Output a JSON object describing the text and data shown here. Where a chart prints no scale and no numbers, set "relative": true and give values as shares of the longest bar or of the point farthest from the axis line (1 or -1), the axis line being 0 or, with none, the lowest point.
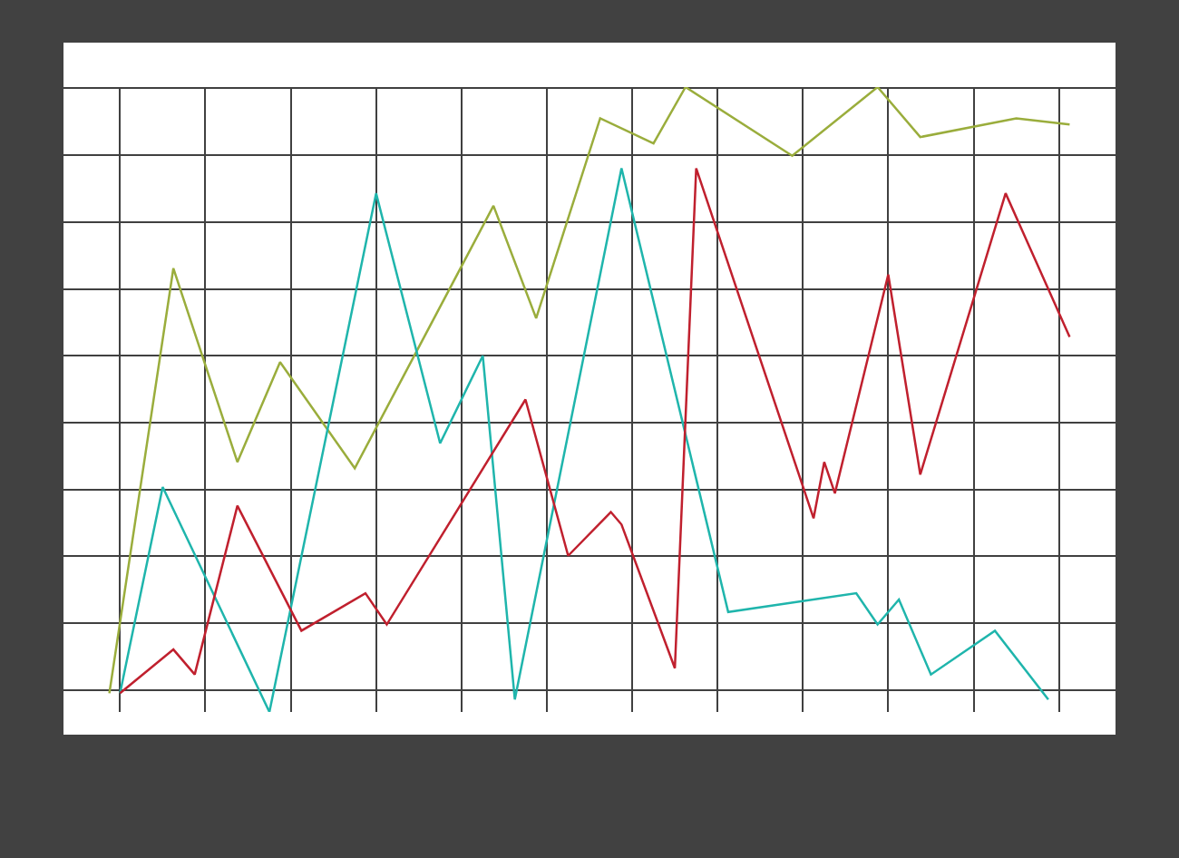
{
  "chart_data": {
    "type": "line",
    "relative": true,
    "tick_labels": false,
    "grid": true,
    "line_style": "solid",
    "categories": [
      null,
      null,
      null,
      null,
      null,
      null,
      null,
      null,
      null,
      null,
      null,
      null,
      null,
      null,
      null,
      null,
      null,
      null,
      null,
      null,
      null,
      null,
      null,
      null,
      null,
      null,
      null,
      null,
      null,
      null,
      null,
      null,
      null,
      null,
      null,
      null,
      null,
      null,
      null,
      null,
      null,
      null,
      null,
      null,
      null,
      null,
      null,
      null,
      null,
      null,
      null,
      null,
      null,
      null,
      null,
      null,
      null,
      null,
      null,
      null,
      null,
      null,
      null,
      null,
      null,
      null,
      null,
      null,
      null,
      null,
      null,
      null,
      null,
      null,
      null,
      null,
      null,
      null,
      null,
      null,
      null,
      null,
      null,
      null,
      null,
      null,
      null,
      null,
      null,
      null,
      null
    ],
    "series": [
      {
        "color": "#9aad3c",
        "values": [
          0.03,
          null,
          null,
          null,
          null,
          null,
          0.71,
          null,
          null,
          null,
          null,
          null,
          0.4,
          null,
          null,
          null,
          0.56,
          null,
          null,
          null,
          null,
          null,
          null,
          0.39,
          null,
          null,
          null,
          null,
          null,
          null,
          null,
          null,
          null,
          null,
          null,
          null,
          0.81,
          null,
          null,
          null,
          0.63,
          null,
          null,
          null,
          null,
          null,
          0.95,
          null,
          null,
          null,
          null,
          0.91,
          null,
          null,
          1.0,
          null,
          null,
          null,
          null,
          null,
          null,
          null,
          null,
          null,
          0.89,
          null,
          null,
          null,
          null,
          null,
          null,
          null,
          1.0,
          null,
          null,
          null,
          0.92,
          null,
          null,
          null,
          null,
          null,
          null,
          null,
          null,
          0.95,
          null,
          null,
          null,
          null,
          0.94
        ]
      },
      {
        "color": "#1fb5ac",
        "values": [
          null,
          0.03,
          null,
          null,
          null,
          0.36,
          null,
          null,
          null,
          null,
          null,
          null,
          null,
          null,
          null,
          0,
          null,
          null,
          null,
          null,
          null,
          null,
          null,
          null,
          null,
          0.83,
          null,
          null,
          null,
          null,
          null,
          0.43,
          null,
          null,
          null,
          0.57,
          null,
          null,
          0.02,
          null,
          null,
          null,
          null,
          null,
          null,
          null,
          null,
          null,
          0.87,
          null,
          null,
          null,
          null,
          null,
          null,
          null,
          null,
          null,
          0.16,
          null,
          null,
          null,
          null,
          null,
          null,
          null,
          null,
          null,
          null,
          null,
          0.19,
          null,
          0.14,
          null,
          0.18,
          null,
          null,
          0.06,
          null,
          null,
          null,
          null,
          null,
          0.13,
          null,
          null,
          null,
          null,
          0.02,
          null,
          null
        ]
      },
      {
        "color": "#c0202e",
        "values": [
          null,
          0.03,
          null,
          null,
          null,
          null,
          0.1,
          null,
          0.06,
          null,
          null,
          null,
          0.33,
          null,
          null,
          null,
          null,
          null,
          0.13,
          null,
          null,
          null,
          null,
          null,
          0.19,
          null,
          0.14,
          null,
          null,
          null,
          null,
          null,
          null,
          null,
          null,
          null,
          null,
          null,
          null,
          0.5,
          null,
          null,
          null,
          0.25,
          null,
          null,
          null,
          0.32,
          0.3,
          null,
          null,
          null,
          null,
          0.07,
          null,
          0.87,
          null,
          null,
          null,
          null,
          null,
          null,
          null,
          null,
          null,
          null,
          0.31,
          0.4,
          0.35,
          null,
          null,
          null,
          null,
          0.7,
          null,
          null,
          0.38,
          null,
          null,
          null,
          null,
          null,
          null,
          null,
          0.83,
          null,
          null,
          null,
          null,
          null,
          0.6
        ]
      }
    ]
  }
}
